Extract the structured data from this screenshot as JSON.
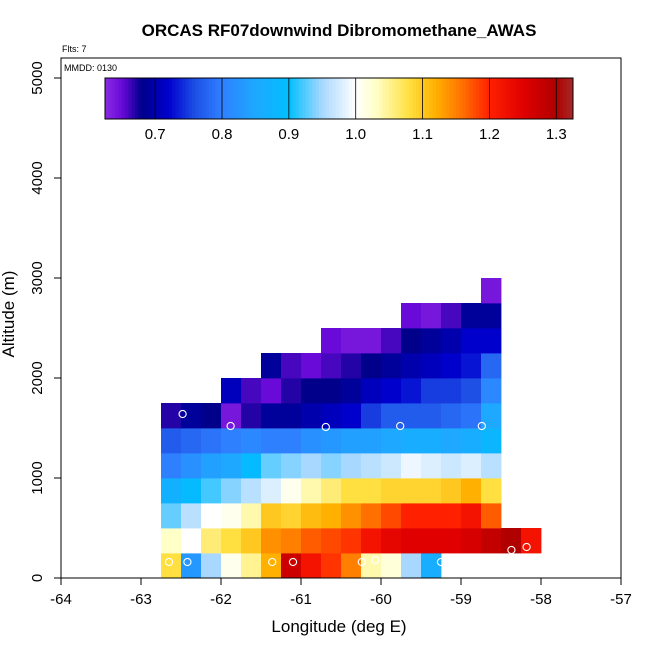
{
  "chart_data": {
    "type": "heatmap",
    "title": "ORCAS RF07downwind Dibromomethane_AWAS",
    "subtitle_flts": "Flts: 7",
    "subtitle_mmdd": "MMDD: 0130",
    "xlabel": "Longitude (deg E)",
    "ylabel": "Altitude (m)",
    "xlim": [
      -64,
      -57
    ],
    "ylim": [
      0,
      5200
    ],
    "x_ticks": [
      -64,
      -63,
      -62,
      -61,
      -60,
      -59,
      -58,
      -57
    ],
    "x_tick_labels": [
      "-64",
      "-63",
      "-62",
      "-61",
      "-60",
      "-59",
      "-58",
      "-57"
    ],
    "y_ticks": [
      0,
      1000,
      2000,
      3000,
      4000,
      5000
    ],
    "y_tick_labels": [
      "0",
      "1000",
      "2000",
      "3000",
      "4000",
      "5000"
    ],
    "colorbar": {
      "range": [
        0.625,
        1.325
      ],
      "ticks": [
        0.7,
        0.8,
        0.9,
        1.0,
        1.1,
        1.2,
        1.3
      ],
      "tick_labels": [
        "0.7",
        "0.8",
        "0.9",
        "1.0",
        "1.1",
        "1.2",
        "1.3"
      ],
      "stops": [
        {
          "v": 0.625,
          "c": "#8a2be2"
        },
        {
          "v": 0.65,
          "c": "#6a0ad8"
        },
        {
          "v": 0.68,
          "c": "#00008b"
        },
        {
          "v": 0.72,
          "c": "#0000cd"
        },
        {
          "v": 0.76,
          "c": "#1e50e6"
        },
        {
          "v": 0.8,
          "c": "#2f80ff"
        },
        {
          "v": 0.85,
          "c": "#1ea8ff"
        },
        {
          "v": 0.9,
          "c": "#00bfff"
        },
        {
          "v": 0.95,
          "c": "#a8d8ff"
        },
        {
          "v": 1.0,
          "c": "#ffffff"
        },
        {
          "v": 1.03,
          "c": "#ffffc8"
        },
        {
          "v": 1.08,
          "c": "#ffe040"
        },
        {
          "v": 1.12,
          "c": "#ffb000"
        },
        {
          "v": 1.16,
          "c": "#ff7000"
        },
        {
          "v": 1.2,
          "c": "#ff2000"
        },
        {
          "v": 1.25,
          "c": "#e00000"
        },
        {
          "v": 1.3,
          "c": "#b00000"
        },
        {
          "v": 1.325,
          "c": "#a52a2a"
        }
      ]
    },
    "cell_size": {
      "dlon": 0.25,
      "dalt": 250
    },
    "grid_lon_start": -62.75,
    "grid_alt_start": 0,
    "rows": [
      [
        1.08,
        0.83,
        0.95,
        1.01,
        1.05,
        1.12,
        1.27,
        1.22,
        1.19,
        1.15,
        1.04,
        1.02,
        0.95,
        0.86,
        null,
        null,
        null,
        null,
        null
      ],
      [
        1.03,
        1.0,
        1.06,
        1.08,
        1.1,
        1.14,
        1.15,
        1.17,
        1.18,
        1.19,
        1.22,
        1.24,
        1.25,
        1.25,
        1.25,
        1.26,
        1.28,
        1.3,
        1.22
      ],
      [
        0.93,
        0.96,
        1.0,
        1.01,
        1.04,
        1.1,
        1.09,
        1.11,
        1.12,
        1.14,
        1.16,
        1.18,
        1.2,
        1.2,
        1.2,
        1.22,
        1.17,
        null,
        null
      ],
      [
        0.87,
        0.89,
        0.92,
        0.94,
        0.96,
        0.98,
        1.01,
        1.04,
        1.06,
        1.08,
        1.08,
        1.09,
        1.09,
        1.09,
        1.1,
        1.12,
        1.08,
        null,
        null
      ],
      [
        0.8,
        0.82,
        0.84,
        0.85,
        0.89,
        0.93,
        0.94,
        0.95,
        0.94,
        0.95,
        0.96,
        0.97,
        0.99,
        0.98,
        0.97,
        0.98,
        0.96,
        null,
        null
      ],
      [
        0.77,
        0.78,
        0.79,
        0.8,
        0.81,
        0.8,
        0.8,
        0.82,
        0.83,
        0.84,
        0.84,
        0.85,
        0.86,
        0.86,
        0.85,
        0.86,
        0.88,
        null,
        null
      ],
      [
        0.67,
        0.69,
        0.68,
        0.64,
        0.67,
        0.69,
        0.69,
        0.7,
        0.71,
        0.72,
        0.75,
        0.77,
        0.77,
        0.77,
        0.78,
        0.79,
        0.85,
        null,
        null
      ],
      [
        null,
        null,
        null,
        0.71,
        0.66,
        0.65,
        0.67,
        0.68,
        0.68,
        0.69,
        0.71,
        0.72,
        0.73,
        0.75,
        0.75,
        0.76,
        0.81,
        null,
        null
      ],
      [
        null,
        null,
        null,
        null,
        null,
        0.69,
        0.66,
        0.65,
        0.66,
        0.67,
        0.68,
        0.69,
        0.7,
        0.71,
        0.72,
        0.73,
        0.78,
        null,
        null
      ],
      [
        null,
        null,
        null,
        null,
        null,
        null,
        null,
        null,
        0.65,
        0.64,
        0.64,
        0.66,
        0.68,
        0.69,
        0.7,
        0.72,
        0.72,
        null,
        null
      ],
      [
        null,
        null,
        null,
        null,
        null,
        null,
        null,
        null,
        null,
        null,
        null,
        null,
        0.65,
        0.64,
        0.66,
        0.69,
        0.69,
        null,
        null
      ],
      [
        null,
        null,
        null,
        null,
        null,
        null,
        null,
        null,
        null,
        null,
        null,
        null,
        null,
        null,
        null,
        null,
        0.64,
        null,
        null
      ]
    ],
    "points": [
      {
        "lon": -62.65,
        "alt": 160
      },
      {
        "lon": -62.42,
        "alt": 160
      },
      {
        "lon": -61.36,
        "alt": 160
      },
      {
        "lon": -61.1,
        "alt": 160
      },
      {
        "lon": -60.24,
        "alt": 160
      },
      {
        "lon": -60.07,
        "alt": 180
      },
      {
        "lon": -59.25,
        "alt": 160
      },
      {
        "lon": -59.12,
        "alt": 160
      },
      {
        "lon": -58.37,
        "alt": 280
      },
      {
        "lon": -58.18,
        "alt": 310
      },
      {
        "lon": -62.48,
        "alt": 1640
      },
      {
        "lon": -61.88,
        "alt": 1520
      },
      {
        "lon": -60.69,
        "alt": 1510
      },
      {
        "lon": -59.76,
        "alt": 1520
      },
      {
        "lon": -58.74,
        "alt": 1520
      },
      {
        "lon": -58.42,
        "alt": 2960
      }
    ]
  }
}
